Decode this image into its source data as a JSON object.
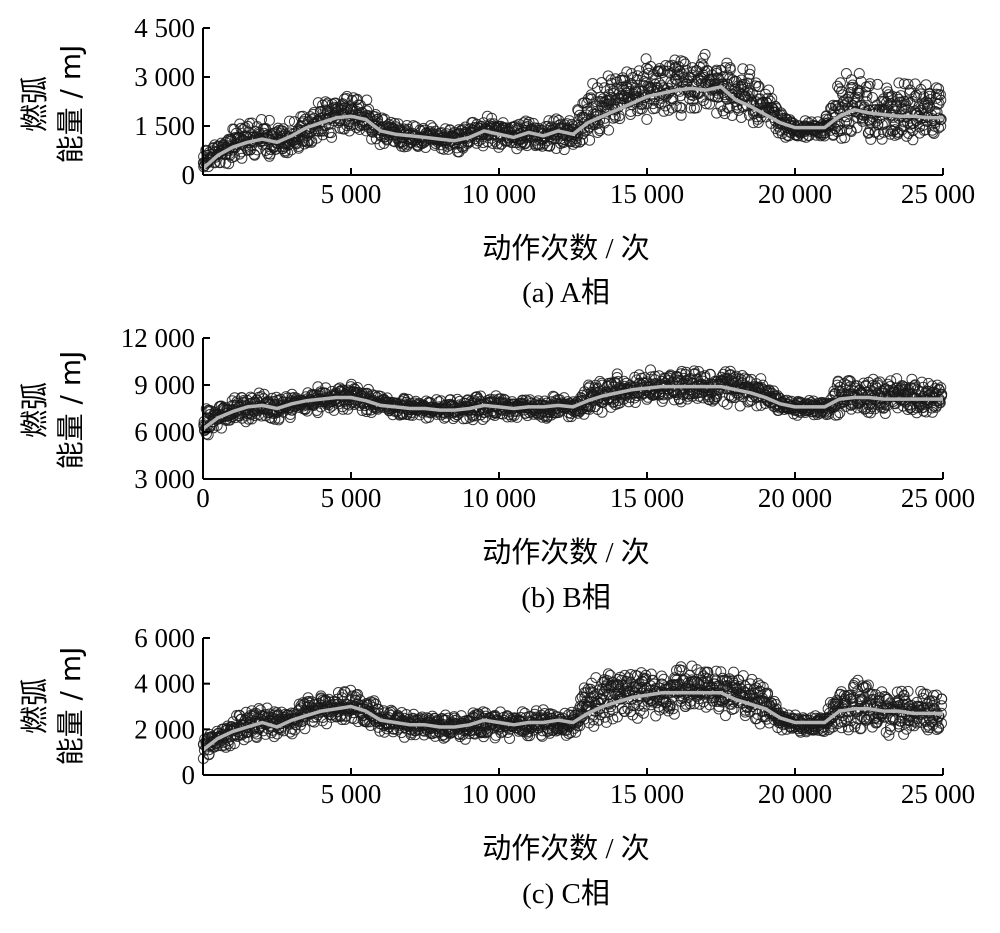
{
  "chart_data": [
    {
      "type": "scatter",
      "panel": "a",
      "caption": "(a)  A相",
      "xlabel": "动作次数 / 次",
      "ylabel_line1": "燃弧",
      "ylabel_line2": "能量 / mJ",
      "xlim": [
        0,
        25000
      ],
      "ylim": [
        0,
        4500
      ],
      "xticks": [
        5000,
        10000,
        15000,
        20000,
        25000
      ],
      "xtick_labels": [
        "5 000",
        "10 000",
        "15 000",
        "20 000",
        "25 000"
      ],
      "yticks": [
        0,
        1500,
        3000,
        4500
      ],
      "ytick_labels": [
        "0",
        "1 500",
        "3 000",
        "4 500"
      ],
      "trend_color": "#b4b4b4",
      "marker_color": "#1a1a1a",
      "trend": {
        "x": [
          0,
          500,
          1000,
          1500,
          2000,
          2500,
          3000,
          3500,
          4000,
          4500,
          5000,
          5500,
          6000,
          6500,
          7000,
          7500,
          8000,
          8500,
          9000,
          9500,
          10000,
          10500,
          11000,
          11500,
          12000,
          12500,
          13000,
          13500,
          14000,
          14500,
          15000,
          15500,
          16000,
          16500,
          17000,
          17500,
          18000,
          18500,
          19000,
          19500,
          20000,
          20500,
          21000,
          21500,
          22000,
          22500,
          23000,
          23500,
          24000,
          24500,
          25000
        ],
        "y": [
          200,
          600,
          850,
          1000,
          1100,
          1000,
          1200,
          1450,
          1600,
          1750,
          1800,
          1700,
          1350,
          1250,
          1200,
          1150,
          1100,
          1050,
          1150,
          1350,
          1250,
          1150,
          1300,
          1200,
          1350,
          1250,
          1600,
          1800,
          2000,
          2200,
          2400,
          2500,
          2600,
          2650,
          2600,
          2700,
          2300,
          2100,
          1850,
          1600,
          1450,
          1450,
          1450,
          1800,
          2000,
          1900,
          1850,
          1800,
          1800,
          1750,
          1750
        ]
      },
      "band": {
        "x": [
          0,
          500,
          1000,
          1500,
          2000,
          2500,
          3000,
          3500,
          4000,
          4500,
          5000,
          5500,
          6000,
          6500,
          7000,
          7500,
          8000,
          8500,
          9000,
          9500,
          10000,
          10500,
          11000,
          11500,
          12000,
          12500,
          13000,
          13500,
          14000,
          14500,
          15000,
          15500,
          16000,
          16500,
          17000,
          17500,
          18000,
          18500,
          19000,
          19500,
          20000,
          20500,
          21000,
          21500,
          22000,
          22500,
          23000,
          23500,
          24000,
          24500,
          25000
        ],
        "upper": [
          700,
          1150,
          1500,
          1700,
          1850,
          1650,
          1800,
          2100,
          2300,
          2450,
          2600,
          2400,
          1900,
          1650,
          1600,
          1550,
          1500,
          1500,
          1600,
          2100,
          1850,
          1700,
          1750,
          1700,
          1900,
          1700,
          3000,
          3200,
          3400,
          3500,
          3600,
          3700,
          3700,
          3750,
          3800,
          3900,
          3500,
          3300,
          3000,
          2100,
          1700,
          1700,
          1700,
          3300,
          3300,
          3100,
          3000,
          2950,
          2950,
          2950,
          2950
        ],
        "lower": [
          0,
          150,
          300,
          400,
          450,
          450,
          600,
          800,
          1000,
          1100,
          1200,
          1100,
          800,
          800,
          750,
          700,
          700,
          650,
          700,
          700,
          650,
          700,
          750,
          700,
          700,
          700,
          900,
          1100,
          1300,
          1500,
          1600,
          1700,
          1800,
          1850,
          1800,
          1700,
          1500,
          1400,
          1300,
          1100,
          1100,
          1100,
          1100,
          900,
          900,
          900,
          900,
          900,
          900,
          900,
          900
        ]
      }
    },
    {
      "type": "scatter",
      "panel": "b",
      "caption": "(b)  B相",
      "xlabel": "动作次数 / 次",
      "ylabel_line1": "燃弧",
      "ylabel_line2": "能量 / mJ",
      "xlim": [
        0,
        25000
      ],
      "ylim": [
        3000,
        12000
      ],
      "xticks": [
        0,
        5000,
        10000,
        15000,
        20000,
        25000
      ],
      "xtick_labels": [
        "0",
        "5 000",
        "10 000",
        "15 000",
        "20 000",
        "25 000"
      ],
      "yticks": [
        3000,
        6000,
        9000,
        12000
      ],
      "ytick_labels": [
        "3 000",
        "6 000",
        "9 000",
        "12 000"
      ],
      "trend_color": "#b4b4b4",
      "marker_color": "#1a1a1a",
      "trend": {
        "x": [
          0,
          500,
          1000,
          1500,
          2000,
          2500,
          3000,
          3500,
          4000,
          4500,
          5000,
          5500,
          6000,
          6500,
          7000,
          7500,
          8000,
          8500,
          9000,
          9500,
          10000,
          10500,
          11000,
          11500,
          12000,
          12500,
          13000,
          13500,
          14000,
          14500,
          15000,
          15500,
          16000,
          16500,
          17000,
          17500,
          18000,
          18500,
          19000,
          19500,
          20000,
          20500,
          21000,
          21500,
          22000,
          22500,
          23000,
          23500,
          24000,
          24500,
          25000
        ],
        "y": [
          6200,
          6900,
          7300,
          7600,
          7700,
          7500,
          7800,
          8000,
          8100,
          8200,
          8200,
          8000,
          7700,
          7600,
          7500,
          7500,
          7400,
          7400,
          7500,
          7700,
          7600,
          7500,
          7600,
          7600,
          7700,
          7600,
          8000,
          8300,
          8500,
          8700,
          8800,
          8900,
          8900,
          8900,
          8900,
          8900,
          8700,
          8500,
          8200,
          7800,
          7600,
          7600,
          7600,
          8100,
          8200,
          8200,
          8100,
          8100,
          8100,
          8100,
          8100
        ]
      },
      "band": {
        "x": [
          0,
          500,
          1000,
          1500,
          2000,
          2500,
          3000,
          3500,
          4000,
          4500,
          5000,
          5500,
          6000,
          6500,
          7000,
          7500,
          8000,
          8500,
          9000,
          9500,
          10000,
          10500,
          11000,
          11500,
          12000,
          12500,
          13000,
          13500,
          14000,
          14500,
          15000,
          15500,
          16000,
          16500,
          17000,
          17500,
          18000,
          18500,
          19000,
          19500,
          20000,
          20500,
          21000,
          21500,
          22000,
          22500,
          23000,
          23500,
          24000,
          24500,
          25000
        ],
        "upper": [
          7500,
          7900,
          8300,
          8500,
          8600,
          8400,
          8600,
          8800,
          9000,
          9100,
          9200,
          8900,
          8500,
          8300,
          8200,
          8100,
          8100,
          8100,
          8300,
          8600,
          8400,
          8300,
          8400,
          8300,
          8400,
          8300,
          9300,
          9600,
          9800,
          9900,
          10000,
          10100,
          10100,
          10100,
          10200,
          10300,
          10000,
          9800,
          9400,
          8300,
          8100,
          8100,
          8100,
          9500,
          9600,
          9500,
          9500,
          9500,
          9500,
          9500,
          9500
        ],
        "lower": [
          5000,
          5900,
          6400,
          6600,
          6700,
          6600,
          6900,
          7100,
          7200,
          7300,
          7300,
          7200,
          7000,
          6900,
          6900,
          6800,
          6800,
          6700,
          6700,
          6700,
          6700,
          6800,
          6800,
          6800,
          6800,
          6800,
          7000,
          7200,
          7400,
          7600,
          7700,
          7800,
          7800,
          7800,
          7800,
          7800,
          7600,
          7500,
          7300,
          7100,
          7000,
          7000,
          7000,
          7000,
          7000,
          7000,
          7000,
          7000,
          7000,
          7000,
          7000
        ]
      }
    },
    {
      "type": "scatter",
      "panel": "c",
      "caption": "(c)  C相",
      "xlabel": "动作次数 / 次",
      "ylabel_line1": "燃弧",
      "ylabel_line2": "能量 / mJ",
      "xlim": [
        0,
        25000
      ],
      "ylim": [
        0,
        6000
      ],
      "xticks": [
        5000,
        10000,
        15000,
        20000,
        25000
      ],
      "xtick_labels": [
        "5 000",
        "10 000",
        "15 000",
        "20 000",
        "25 000"
      ],
      "yticks": [
        0,
        2000,
        4000,
        6000
      ],
      "ytick_labels": [
        "0",
        "2 000",
        "4 000",
        "6 000"
      ],
      "trend_color": "#b4b4b4",
      "marker_color": "#1a1a1a",
      "trend": {
        "x": [
          0,
          500,
          1000,
          1500,
          2000,
          2500,
          3000,
          3500,
          4000,
          4500,
          5000,
          5500,
          6000,
          6500,
          7000,
          7500,
          8000,
          8500,
          9000,
          9500,
          10000,
          10500,
          11000,
          11500,
          12000,
          12500,
          13000,
          13500,
          14000,
          14500,
          15000,
          15500,
          16000,
          16500,
          17000,
          17500,
          18000,
          18500,
          19000,
          19500,
          20000,
          20500,
          21000,
          21500,
          22000,
          22500,
          23000,
          23500,
          24000,
          24500,
          25000
        ],
        "y": [
          1100,
          1600,
          1900,
          2100,
          2300,
          2100,
          2400,
          2600,
          2800,
          2900,
          3000,
          2800,
          2400,
          2300,
          2200,
          2200,
          2100,
          2100,
          2200,
          2400,
          2300,
          2200,
          2300,
          2300,
          2400,
          2300,
          2700,
          3000,
          3200,
          3400,
          3500,
          3600,
          3600,
          3600,
          3600,
          3600,
          3300,
          3100,
          2900,
          2500,
          2300,
          2300,
          2300,
          2800,
          2900,
          2900,
          2800,
          2800,
          2700,
          2700,
          2700
        ]
      },
      "band": {
        "x": [
          0,
          500,
          1000,
          1500,
          2000,
          2500,
          3000,
          3500,
          4000,
          4500,
          5000,
          5500,
          6000,
          6500,
          7000,
          7500,
          8000,
          8500,
          9000,
          9500,
          10000,
          10500,
          11000,
          11500,
          12000,
          12500,
          13000,
          13500,
          14000,
          14500,
          15000,
          15500,
          16000,
          16500,
          17000,
          17500,
          18000,
          18500,
          19000,
          19500,
          20000,
          20500,
          21000,
          21500,
          22000,
          22500,
          23000,
          23500,
          24000,
          24500,
          25000
        ],
        "upper": [
          1700,
          2300,
          2700,
          2900,
          3100,
          2900,
          3100,
          3400,
          3600,
          3700,
          3800,
          3600,
          3100,
          2900,
          2800,
          2700,
          2700,
          2700,
          2800,
          3100,
          2900,
          2800,
          2900,
          2900,
          3000,
          2900,
          4300,
          4500,
          4600,
          4700,
          4800,
          4900,
          4900,
          4900,
          5000,
          5000,
          4600,
          4400,
          4100,
          2900,
          2700,
          2700,
          2700,
          4300,
          4300,
          4100,
          4000,
          4000,
          3900,
          3900,
          3900
        ],
        "lower": [
          600,
          1000,
          1300,
          1500,
          1600,
          1500,
          1700,
          1900,
          2100,
          2200,
          2200,
          2100,
          1800,
          1700,
          1600,
          1600,
          1500,
          1500,
          1500,
          1500,
          1500,
          1600,
          1600,
          1600,
          1600,
          1600,
          1800,
          2000,
          2200,
          2400,
          2500,
          2600,
          2600,
          2600,
          2600,
          2600,
          2400,
          2300,
          2100,
          1800,
          1800,
          1800,
          1800,
          1700,
          1700,
          1700,
          1700,
          1700,
          1700,
          1700,
          1700
        ]
      }
    }
  ]
}
